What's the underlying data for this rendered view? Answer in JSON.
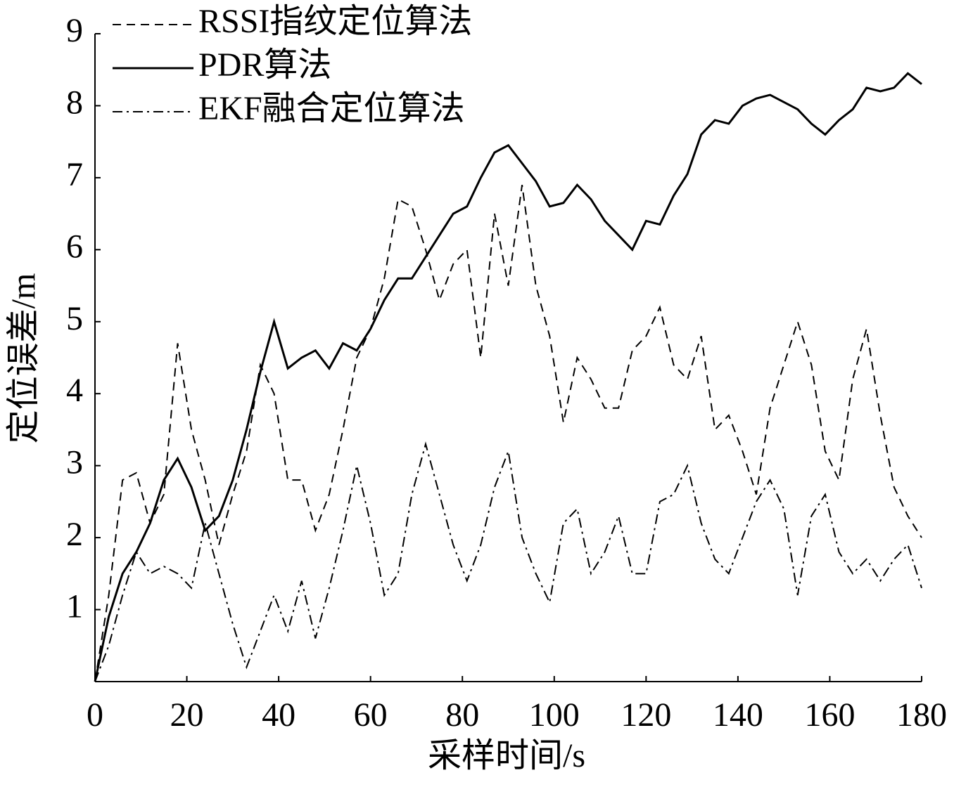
{
  "chart_data": {
    "type": "line",
    "xlabel": "采样时间/s",
    "ylabel": "定位误差/m",
    "x": [
      0,
      3,
      6,
      9,
      12,
      15,
      18,
      21,
      24,
      27,
      30,
      33,
      36,
      39,
      42,
      45,
      48,
      51,
      54,
      57,
      60,
      63,
      66,
      69,
      72,
      75,
      78,
      81,
      84,
      87,
      90,
      93,
      96,
      99,
      102,
      105,
      108,
      111,
      114,
      117,
      120,
      123,
      126,
      129,
      132,
      135,
      138,
      141,
      144,
      147,
      150,
      153,
      156,
      159,
      162,
      165,
      168,
      171,
      174,
      177,
      180
    ],
    "series": [
      {
        "name": "RSSI指纹定位算法",
        "color": "#000000",
        "style": "dashed",
        "values": [
          0,
          1.2,
          2.8,
          2.9,
          2.2,
          2.6,
          4.7,
          3.5,
          2.8,
          1.9,
          2.6,
          3.2,
          4.4,
          4.0,
          2.8,
          2.8,
          2.1,
          2.6,
          3.5,
          4.5,
          4.9,
          5.6,
          6.7,
          6.6,
          6.0,
          5.3,
          5.8,
          6.0,
          4.5,
          6.5,
          5.5,
          6.9,
          5.5,
          4.8,
          3.6,
          4.5,
          4.2,
          3.8,
          3.8,
          4.6,
          4.8,
          5.2,
          4.4,
          4.2,
          4.8,
          3.5,
          3.7,
          3.2,
          2.6,
          3.8,
          4.4,
          5.0,
          4.4,
          3.2,
          2.8,
          4.2,
          4.9,
          3.7,
          2.7,
          2.3,
          2.0
        ]
      },
      {
        "name": "PDR算法",
        "color": "#000000",
        "style": "solid",
        "values": [
          0,
          0.9,
          1.5,
          1.8,
          2.2,
          2.8,
          3.1,
          2.7,
          2.1,
          2.3,
          2.8,
          3.5,
          4.3,
          5.0,
          4.35,
          4.5,
          4.6,
          4.35,
          4.7,
          4.6,
          4.9,
          5.3,
          5.6,
          5.6,
          5.9,
          6.2,
          6.5,
          6.6,
          7.0,
          7.35,
          7.45,
          7.2,
          6.95,
          6.6,
          6.65,
          6.9,
          6.7,
          6.4,
          6.2,
          6.0,
          6.4,
          6.35,
          6.75,
          7.05,
          7.6,
          7.8,
          7.75,
          8.0,
          8.1,
          8.15,
          8.05,
          7.95,
          7.75,
          7.6,
          7.8,
          7.95,
          8.25,
          8.2,
          8.25,
          8.45,
          8.3
        ]
      },
      {
        "name": "EKF融合定位算法",
        "color": "#000000",
        "style": "dashdot",
        "values": [
          0,
          0.5,
          1.2,
          1.8,
          1.5,
          1.6,
          1.5,
          1.3,
          2.2,
          1.5,
          0.8,
          0.2,
          0.7,
          1.2,
          0.7,
          1.4,
          0.6,
          1.3,
          2.1,
          3.0,
          2.2,
          1.2,
          1.5,
          2.6,
          3.3,
          2.6,
          1.9,
          1.4,
          1.9,
          2.7,
          3.2,
          2.0,
          1.5,
          1.1,
          2.2,
          2.4,
          1.5,
          1.8,
          2.3,
          1.5,
          1.5,
          2.5,
          2.6,
          3.0,
          2.2,
          1.7,
          1.5,
          2.0,
          2.5,
          2.8,
          2.4,
          1.2,
          2.3,
          2.6,
          1.8,
          1.5,
          1.7,
          1.4,
          1.7,
          1.9,
          1.3
        ]
      }
    ],
    "xlim": [
      0,
      180
    ],
    "ylim": [
      0,
      9
    ],
    "xticks": [
      0,
      20,
      40,
      60,
      80,
      100,
      120,
      140,
      160,
      180
    ],
    "yticks": [
      1,
      2,
      3,
      4,
      5,
      6,
      7,
      8,
      9
    ],
    "legend": "upper left",
    "grid": false
  }
}
